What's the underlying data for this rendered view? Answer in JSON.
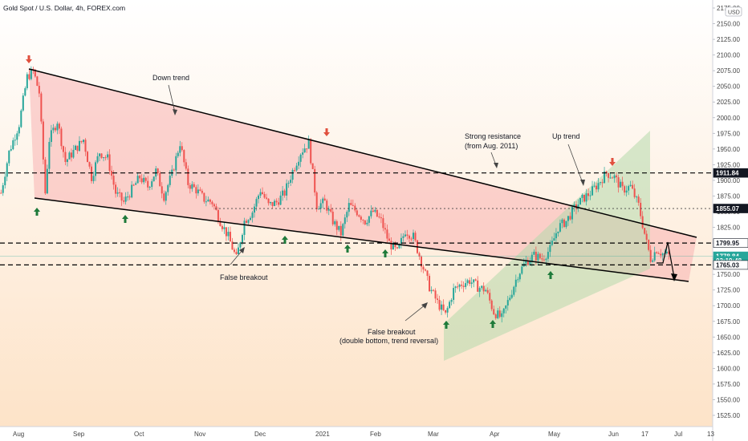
{
  "title": "Gold Spot / U.S. Dollar, 4h, FOREX.com",
  "currency": "USD",
  "chart_data": {
    "type": "candlestick",
    "yaxis": {
      "min": 1525,
      "max": 2175,
      "ticks": [
        "2175.00",
        "2150.00",
        "2125.00",
        "2100.00",
        "2075.00",
        "2050.00",
        "2025.00",
        "2000.00",
        "1975.00",
        "1950.00",
        "1925.00",
        "1900.00",
        "1875.00",
        "1850.00",
        "1825.00",
        "1800.00",
        "1775.00",
        "1750.00",
        "1725.00",
        "1700.00",
        "1675.00",
        "1650.00",
        "1625.00",
        "1600.00",
        "1575.00",
        "1550.00",
        "1525.00"
      ]
    },
    "xaxis": {
      "labels": [
        "Aug",
        "Sep",
        "Oct",
        "Nov",
        "Dec",
        "2021",
        "Feb",
        "Mar",
        "Apr",
        "May",
        "Jun",
        "17",
        "Jul",
        "13"
      ]
    },
    "price_path": [
      [
        0,
        1880
      ],
      [
        4,
        1945
      ],
      [
        9,
        1990
      ],
      [
        13,
        2065
      ],
      [
        16,
        2075
      ],
      [
        19,
        2040
      ],
      [
        22,
        1880
      ],
      [
        24,
        1965
      ],
      [
        28,
        1995
      ],
      [
        32,
        1930
      ],
      [
        37,
        1950
      ],
      [
        41,
        1965
      ],
      [
        45,
        1905
      ],
      [
        49,
        1945
      ],
      [
        53,
        1935
      ],
      [
        57,
        1880
      ],
      [
        61,
        1865
      ],
      [
        65,
        1885
      ],
      [
        69,
        1905
      ],
      [
        73,
        1890
      ],
      [
        77,
        1915
      ],
      [
        81,
        1875
      ],
      [
        85,
        1910
      ],
      [
        89,
        1960
      ],
      [
        93,
        1895
      ],
      [
        97,
        1885
      ],
      [
        101,
        1870
      ],
      [
        105,
        1865
      ],
      [
        109,
        1835
      ],
      [
        113,
        1810
      ],
      [
        117,
        1775
      ],
      [
        121,
        1835
      ],
      [
        125,
        1850
      ],
      [
        129,
        1885
      ],
      [
        133,
        1860
      ],
      [
        137,
        1865
      ],
      [
        141,
        1880
      ],
      [
        145,
        1915
      ],
      [
        149,
        1945
      ],
      [
        153,
        1960
      ],
      [
        157,
        1860
      ],
      [
        161,
        1865
      ],
      [
        165,
        1835
      ],
      [
        169,
        1815
      ],
      [
        173,
        1860
      ],
      [
        177,
        1850
      ],
      [
        181,
        1835
      ],
      [
        185,
        1850
      ],
      [
        189,
        1835
      ],
      [
        193,
        1800
      ],
      [
        197,
        1785
      ],
      [
        201,
        1820
      ],
      [
        205,
        1810
      ],
      [
        209,
        1770
      ],
      [
        213,
        1730
      ],
      [
        217,
        1705
      ],
      [
        221,
        1685
      ],
      [
        225,
        1725
      ],
      [
        229,
        1735
      ],
      [
        233,
        1740
      ],
      [
        237,
        1730
      ],
      [
        241,
        1725
      ],
      [
        245,
        1690
      ],
      [
        249,
        1680
      ],
      [
        253,
        1715
      ],
      [
        257,
        1750
      ],
      [
        261,
        1770
      ],
      [
        265,
        1780
      ],
      [
        269,
        1775
      ],
      [
        273,
        1790
      ],
      [
        277,
        1825
      ],
      [
        281,
        1835
      ],
      [
        285,
        1855
      ],
      [
        289,
        1870
      ],
      [
        293,
        1880
      ],
      [
        297,
        1895
      ],
      [
        301,
        1912
      ],
      [
        305,
        1905
      ],
      [
        309,
        1885
      ],
      [
        313,
        1890
      ],
      [
        317,
        1860
      ],
      [
        321,
        1800
      ],
      [
        323,
        1775
      ],
      [
        326,
        1790
      ],
      [
        329,
        1783
      ],
      [
        332,
        1780
      ]
    ],
    "levels": [
      {
        "label": "1911.84",
        "value": 1911.84,
        "style": "dashed",
        "tag_bg": "#131722",
        "tag_color": "#ffffff"
      },
      {
        "label": "1855.07",
        "value": 1855.07,
        "style": "dotted",
        "tag_bg": "#131722",
        "tag_color": "#ffffff"
      },
      {
        "label": "1799.95",
        "value": 1799.95,
        "style": "dashed",
        "tag_bg": "#ffffff",
        "tag_color": "#131722"
      },
      {
        "label": "1778.84",
        "value": 1778.84,
        "style": "current",
        "tag_bg": "#26a69a",
        "tag_color": "#ffffff"
      },
      {
        "label": "03:19:48",
        "value": 1771.8,
        "style": "countdown",
        "tag_bg": "#26a69a",
        "tag_color": "#ffffff"
      },
      {
        "label": "1765.03",
        "value": 1765.03,
        "style": "dashed",
        "tag_bg": "#ffffff",
        "tag_color": "#131722"
      }
    ],
    "annotations": [
      {
        "text": "Down trend"
      },
      {
        "text": "Strong resistance"
      },
      {
        "text": "(from Aug. 2011)"
      },
      {
        "text": "Up trend"
      },
      {
        "text": "False breakout"
      },
      {
        "text": "False breakout"
      },
      {
        "text": "(double bottom, trend reversal)"
      }
    ],
    "colors": {
      "up": "#26a69a",
      "down": "#ef5350",
      "downtrend_fill": "#f7b7b7",
      "uptrend_fill": "#b7dcb0",
      "background_top": "#ffffff",
      "background_bottom": "#fde3c8",
      "arrow_up": "#1e7a3a",
      "arrow_down": "#e0503e"
    }
  }
}
